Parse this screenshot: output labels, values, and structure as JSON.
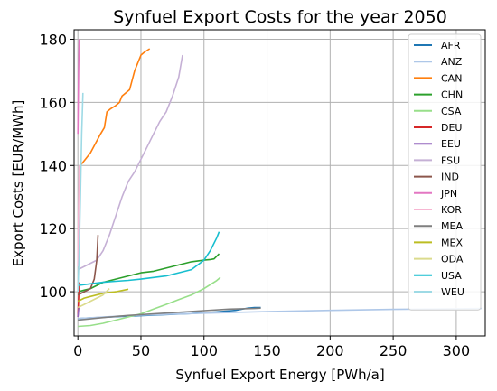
{
  "chart_data": {
    "type": "line",
    "title": "Synfuel Export Costs for the year 2050",
    "xlabel": "Synfuel Export Energy [PWh/a]",
    "ylabel": "Export Costs [EUR/MWh]",
    "xlim": [
      -3,
      323
    ],
    "ylim": [
      86,
      183
    ],
    "xticks": [
      0,
      50,
      100,
      150,
      200,
      250,
      300
    ],
    "yticks": [
      100,
      120,
      140,
      160,
      180
    ],
    "grid": true,
    "legend_position": "right",
    "series": [
      {
        "name": "AFR",
        "color": "#1f77b4",
        "x": [
          0,
          10,
          30,
          60,
          90,
          110,
          125,
          132,
          135,
          140,
          145
        ],
        "y": [
          91.5,
          91.7,
          92.1,
          92.6,
          93.1,
          93.6,
          94.1,
          94.6,
          94.8,
          95,
          95
        ]
      },
      {
        "name": "ANZ",
        "color": "#aec7e8",
        "x": [
          0,
          20,
          50,
          100,
          150,
          200,
          250,
          300,
          320
        ],
        "y": [
          91.5,
          92,
          92.6,
          93.2,
          93.7,
          94.1,
          94.4,
          94.6,
          94.7
        ]
      },
      {
        "name": "CAN",
        "color": "#ff7f0e",
        "x": [
          1,
          2,
          4,
          6,
          10,
          14,
          18,
          21,
          23,
          26,
          30,
          33,
          35,
          38,
          41,
          43,
          45,
          47,
          50,
          53,
          57
        ],
        "y": [
          133,
          140,
          141,
          142,
          144,
          147,
          150,
          152,
          157,
          158,
          159,
          160,
          162,
          163,
          164,
          167,
          170,
          172,
          175,
          176,
          177
        ]
      },
      {
        "name": "CHN",
        "color": "#2ca02c",
        "x": [
          0,
          5,
          10,
          15,
          20,
          30,
          40,
          50,
          60,
          70,
          80,
          90,
          100,
          105,
          108,
          112
        ],
        "y": [
          100,
          100.5,
          101,
          102,
          103,
          104,
          105,
          106,
          106.5,
          107.5,
          108.5,
          109.5,
          110,
          110.2,
          110.4,
          112
        ]
      },
      {
        "name": "CSA",
        "color": "#98df8a",
        "x": [
          0,
          10,
          20,
          30,
          40,
          50,
          60,
          70,
          80,
          90,
          100,
          110,
          113
        ],
        "y": [
          89,
          89.3,
          90,
          91,
          92,
          93,
          94.5,
          96,
          97.5,
          99,
          101,
          103.5,
          104.5
        ]
      },
      {
        "name": "DEU",
        "color": "#d62728",
        "x": [
          0,
          0.5,
          1
        ],
        "y": [
          92,
          97,
          103
        ]
      },
      {
        "name": "EEU",
        "color": "#9467bd",
        "x": [
          0,
          0.4,
          0.8
        ],
        "y": [
          92,
          93.5,
          95
        ]
      },
      {
        "name": "FSU",
        "color": "#c5b0d5",
        "x": [
          0,
          5,
          10,
          15,
          20,
          25,
          30,
          35,
          40,
          45,
          50,
          55,
          60,
          65,
          70,
          75,
          80,
          83
        ],
        "y": [
          107,
          108,
          109,
          110,
          113,
          118,
          124,
          130,
          135,
          138,
          142,
          146,
          150,
          154,
          157,
          162,
          168,
          175
        ]
      },
      {
        "name": "IND",
        "color": "#8c564b",
        "x": [
          0,
          5,
          10,
          13,
          15,
          16
        ],
        "y": [
          99,
          100,
          101,
          104,
          110,
          118
        ]
      },
      {
        "name": "JPN",
        "color": "#e377c2",
        "x": [
          0,
          0.3,
          0.6,
          1
        ],
        "y": [
          150,
          160,
          170,
          180
        ]
      },
      {
        "name": "KOR",
        "color": "#f7b6d2",
        "x": [
          0,
          0.5,
          1
        ],
        "y": [
          108,
          125,
          140
        ]
      },
      {
        "name": "MEA",
        "color": "#7f7f7f",
        "x": [
          0,
          20,
          40,
          60,
          80,
          100,
          120,
          140,
          145
        ],
        "y": [
          91,
          91.8,
          92.5,
          93,
          93.5,
          94,
          94.5,
          94.7,
          94.8
        ]
      },
      {
        "name": "MEX",
        "color": "#bcbd22",
        "x": [
          0,
          5,
          10,
          20,
          30,
          40
        ],
        "y": [
          97,
          98,
          98.5,
          99.5,
          100,
          100.8
        ]
      },
      {
        "name": "ODA",
        "color": "#dbdb8d",
        "x": [
          0,
          5,
          10,
          15,
          20,
          25
        ],
        "y": [
          95,
          96,
          97,
          98,
          99,
          101
        ]
      },
      {
        "name": "USA",
        "color": "#17becf",
        "x": [
          0,
          10,
          20,
          30,
          40,
          50,
          60,
          70,
          80,
          90,
          100,
          105,
          110,
          112
        ],
        "y": [
          102,
          102.5,
          103,
          103.3,
          103.6,
          104,
          104.5,
          105,
          106,
          107,
          110,
          113,
          117,
          119
        ]
      },
      {
        "name": "WEU",
        "color": "#9edae5",
        "x": [
          0,
          1,
          2,
          3,
          4
        ],
        "y": [
          100,
          112,
          130,
          150,
          163
        ]
      }
    ]
  }
}
